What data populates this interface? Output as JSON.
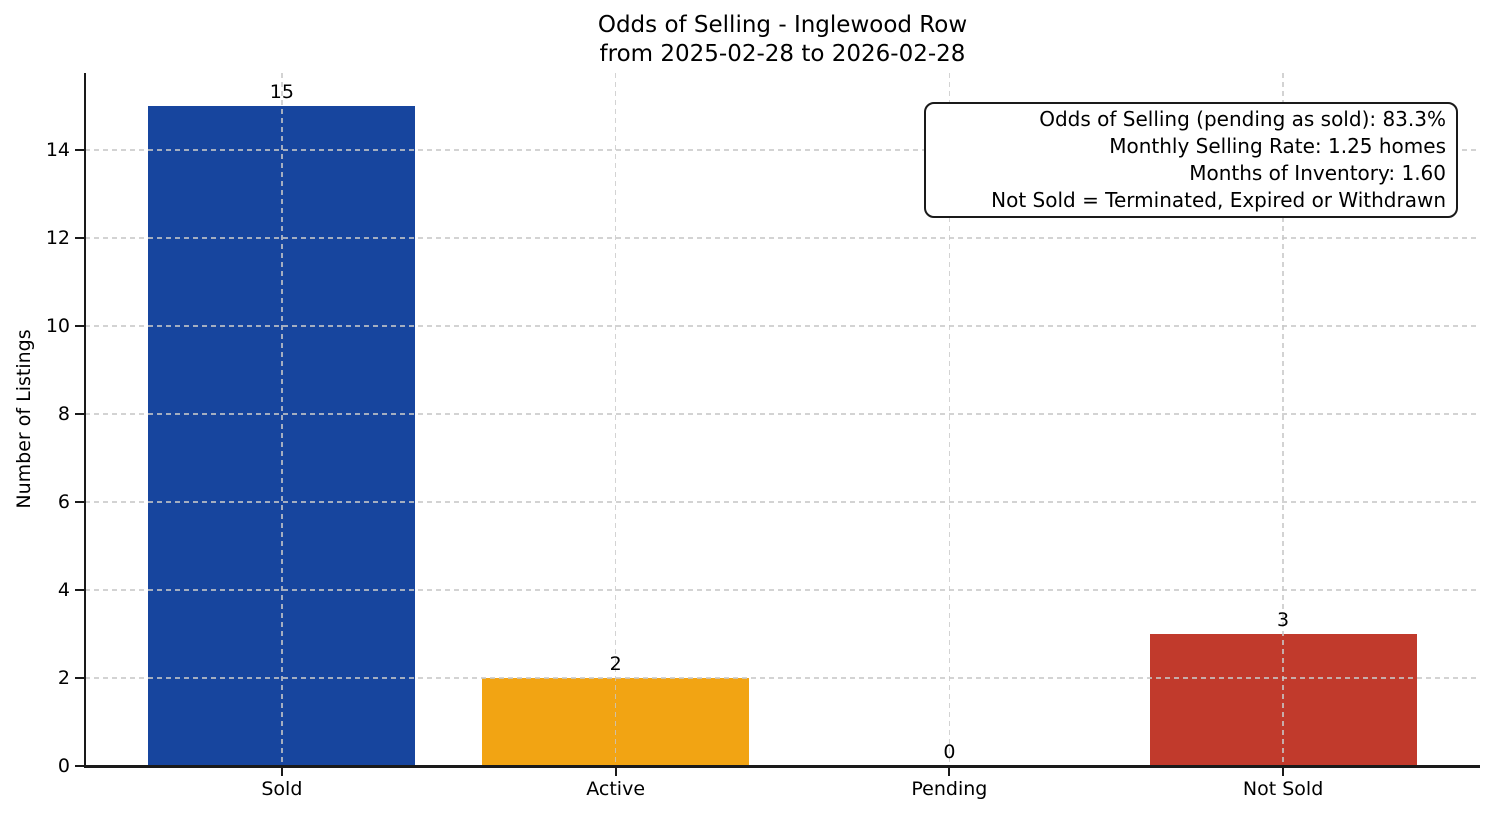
{
  "title": {
    "line1": "Odds of Selling - Inglewood Row",
    "line2": "from 2025-02-28 to 2026-02-28"
  },
  "y_axis": {
    "label": "Number of Listings"
  },
  "annotation_box": {
    "lines": [
      "Odds of Selling (pending as sold): 83.3%",
      "Monthly Selling Rate: 1.25 homes",
      "Months of Inventory: 1.60",
      "Not Sold = Terminated, Expired or Withdrawn"
    ]
  },
  "chart_data": {
    "type": "bar",
    "title": "Odds of Selling - Inglewood Row from 2025-02-28 to 2026-02-28",
    "categories": [
      "Sold",
      "Active",
      "Pending",
      "Not Sold"
    ],
    "values": [
      15,
      2,
      0,
      3
    ],
    "bar_value_labels": [
      "15",
      "2",
      "0",
      "3"
    ],
    "bar_colors": [
      "#17459E",
      "#F2A413",
      "#888888",
      "#C13A2C"
    ],
    "xlabel": "",
    "ylabel": "Number of Listings",
    "ylim": [
      0,
      15.75
    ],
    "yticks": [
      0,
      2,
      4,
      6,
      8,
      10,
      12,
      14
    ],
    "grid": "dashed light-gray horizontal and vertical lines drawn above bars",
    "legend": "none",
    "annotations": [
      "Odds of Selling (pending as sold): 83.3%",
      "Monthly Selling Rate: 1.25 homes",
      "Months of Inventory: 1.60",
      "Not Sold = Terminated, Expired or Withdrawn"
    ]
  },
  "colors": {
    "background": "#ffffff",
    "axis": "#1a1a1a",
    "grid": "#c8c8c8",
    "text": "#000000",
    "annotation_border": "#1a1a1a"
  }
}
